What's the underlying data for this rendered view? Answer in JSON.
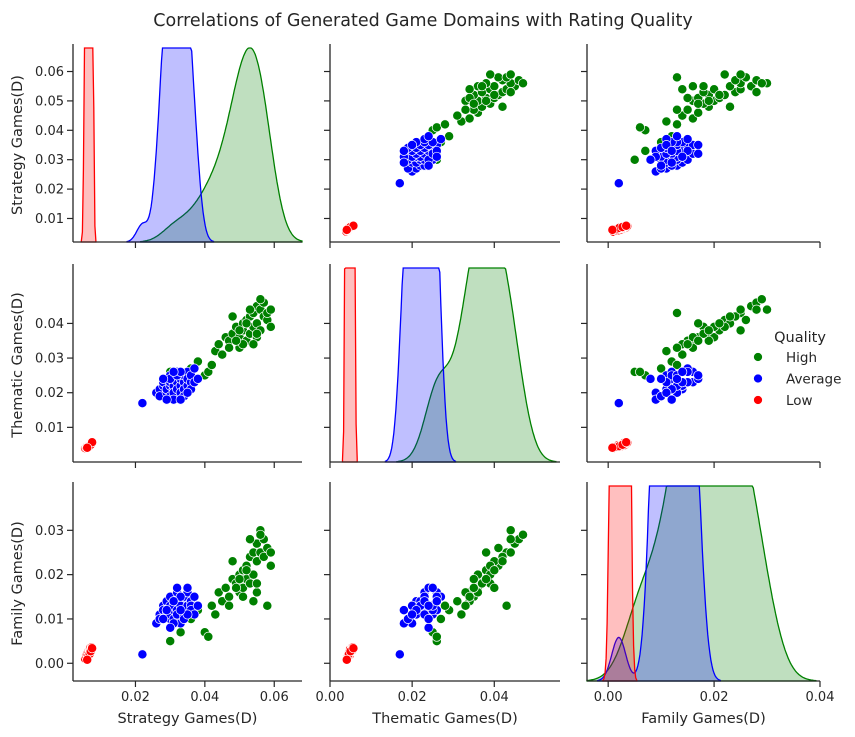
{
  "figure": {
    "title": "Correlations of Generated Game Domains with Rating Quality"
  },
  "legend": {
    "title": "Quality",
    "placement": "right",
    "entries": [
      {
        "label": "High",
        "color": "#008000"
      },
      {
        "label": "Average",
        "color": "#0000ff"
      },
      {
        "label": "Low",
        "color": "#ff0000"
      }
    ]
  },
  "chart_data": {
    "type": "scatter",
    "subtype": "pairplot",
    "variables": [
      "Strategy Games(D)",
      "Thematic Games(D)",
      "Family Games(D)"
    ],
    "axis_ranges": {
      "Strategy Games(D)": [
        0.002,
        0.068
      ],
      "Thematic Games(D)": [
        0.0,
        0.056
      ],
      "Family Games(D)": [
        -0.004,
        0.04
      ]
    },
    "ticks": {
      "Strategy Games(D)": [
        0.01,
        0.02,
        0.03,
        0.04,
        0.05,
        0.06
      ],
      "Thematic Games(D)": [
        0.01,
        0.02,
        0.03,
        0.04
      ],
      "Family Games(D)": [
        0.0,
        0.01,
        0.02,
        0.03
      ]
    },
    "bottom_ticks": {
      "Strategy Games(D)": [
        0.02,
        0.04,
        0.06
      ],
      "Thematic Games(D)": [
        0.0,
        0.02,
        0.04
      ],
      "Family Games(D)": [
        0.0,
        0.02,
        0.04
      ]
    },
    "tick_labels": {
      "Strategy Games(D)": [
        "0.01",
        "0.02",
        "0.03",
        "0.04",
        "0.05",
        "0.06"
      ],
      "Thematic Games(D)": [
        "0.01",
        "0.02",
        "0.03",
        "0.04"
      ],
      "Family Games(D)": [
        "0.00",
        "0.01",
        "0.02",
        "0.03"
      ]
    },
    "bottom_tick_labels": {
      "Strategy Games(D)": [
        "0.02",
        "0.04",
        "0.06"
      ],
      "Thematic Games(D)": [
        "0.00",
        "0.02",
        "0.04"
      ],
      "Family Games(D)": [
        "0.00",
        "0.02",
        "0.04"
      ]
    },
    "diag_ymax": [
      60,
      48,
      30
    ],
    "grid": false,
    "series": [
      {
        "name": "High",
        "color": "#008000",
        "points": [
          [
            0.03,
            0.026,
            0.005
          ],
          [
            0.033,
            0.025,
            0.007
          ],
          [
            0.036,
            0.027,
            0.01
          ],
          [
            0.038,
            0.029,
            0.012
          ],
          [
            0.04,
            0.025,
            0.007
          ],
          [
            0.041,
            0.026,
            0.006
          ],
          [
            0.042,
            0.028,
            0.013
          ],
          [
            0.043,
            0.032,
            0.011
          ],
          [
            0.044,
            0.034,
            0.016
          ],
          [
            0.045,
            0.031,
            0.014
          ],
          [
            0.046,
            0.036,
            0.017
          ],
          [
            0.047,
            0.035,
            0.015
          ],
          [
            0.048,
            0.037,
            0.019
          ],
          [
            0.049,
            0.039,
            0.018
          ],
          [
            0.05,
            0.036,
            0.02
          ],
          [
            0.05,
            0.033,
            0.016
          ],
          [
            0.051,
            0.038,
            0.021
          ],
          [
            0.051,
            0.04,
            0.017
          ],
          [
            0.052,
            0.041,
            0.022
          ],
          [
            0.052,
            0.035,
            0.019
          ],
          [
            0.053,
            0.037,
            0.018
          ],
          [
            0.053,
            0.042,
            0.024
          ],
          [
            0.054,
            0.039,
            0.02
          ],
          [
            0.054,
            0.043,
            0.025
          ],
          [
            0.055,
            0.04,
            0.023
          ],
          [
            0.055,
            0.036,
            0.016
          ],
          [
            0.055,
            0.045,
            0.027
          ],
          [
            0.056,
            0.044,
            0.03
          ],
          [
            0.056,
            0.038,
            0.025
          ],
          [
            0.057,
            0.042,
            0.024
          ],
          [
            0.057,
            0.046,
            0.028
          ],
          [
            0.058,
            0.041,
            0.026
          ],
          [
            0.058,
            0.043,
            0.013
          ],
          [
            0.059,
            0.039,
            0.022
          ],
          [
            0.059,
            0.044,
            0.025
          ],
          [
            0.054,
            0.034,
            0.014
          ],
          [
            0.053,
            0.044,
            0.028
          ],
          [
            0.052,
            0.04,
            0.021
          ],
          [
            0.056,
            0.047,
            0.029
          ],
          [
            0.055,
            0.037,
            0.018
          ],
          [
            0.051,
            0.034,
            0.015
          ],
          [
            0.05,
            0.038,
            0.019
          ],
          [
            0.049,
            0.035,
            0.017
          ],
          [
            0.048,
            0.042,
            0.023
          ],
          [
            0.047,
            0.033,
            0.013
          ]
        ]
      },
      {
        "name": "Average",
        "color": "#0000ff",
        "points": [
          [
            0.022,
            0.017,
            0.002
          ],
          [
            0.026,
            0.02,
            0.009
          ],
          [
            0.027,
            0.021,
            0.011
          ],
          [
            0.027,
            0.019,
            0.01
          ],
          [
            0.028,
            0.022,
            0.013
          ],
          [
            0.028,
            0.023,
            0.012
          ],
          [
            0.029,
            0.02,
            0.011
          ],
          [
            0.029,
            0.021,
            0.014
          ],
          [
            0.029,
            0.024,
            0.012
          ],
          [
            0.03,
            0.022,
            0.013
          ],
          [
            0.03,
            0.019,
            0.01
          ],
          [
            0.03,
            0.023,
            0.015
          ],
          [
            0.03,
            0.025,
            0.011
          ],
          [
            0.031,
            0.021,
            0.012
          ],
          [
            0.031,
            0.022,
            0.014
          ],
          [
            0.031,
            0.024,
            0.01
          ],
          [
            0.031,
            0.02,
            0.013
          ],
          [
            0.032,
            0.023,
            0.016
          ],
          [
            0.032,
            0.026,
            0.012
          ],
          [
            0.032,
            0.021,
            0.011
          ],
          [
            0.033,
            0.022,
            0.014
          ],
          [
            0.033,
            0.024,
            0.013
          ],
          [
            0.033,
            0.02,
            0.009
          ],
          [
            0.034,
            0.023,
            0.015
          ],
          [
            0.034,
            0.025,
            0.012
          ],
          [
            0.034,
            0.021,
            0.011
          ],
          [
            0.035,
            0.022,
            0.013
          ],
          [
            0.035,
            0.026,
            0.016
          ],
          [
            0.035,
            0.024,
            0.017
          ],
          [
            0.036,
            0.023,
            0.014
          ],
          [
            0.036,
            0.025,
            0.013
          ],
          [
            0.036,
            0.021,
            0.012
          ],
          [
            0.037,
            0.027,
            0.015
          ],
          [
            0.037,
            0.023,
            0.011
          ],
          [
            0.038,
            0.024,
            0.013
          ],
          [
            0.031,
            0.018,
            0.009
          ],
          [
            0.03,
            0.024,
            0.008
          ],
          [
            0.032,
            0.025,
            0.017
          ],
          [
            0.033,
            0.026,
            0.015
          ],
          [
            0.034,
            0.019,
            0.01
          ],
          [
            0.028,
            0.024,
            0.01
          ],
          [
            0.029,
            0.018,
            0.012
          ],
          [
            0.035,
            0.02,
            0.011
          ],
          [
            0.031,
            0.026,
            0.014
          ],
          [
            0.033,
            0.018,
            0.012
          ]
        ]
      },
      {
        "name": "Low",
        "color": "#ff0000",
        "points": [
          [
            0.0055,
            0.004,
            0.001
          ],
          [
            0.0058,
            0.0042,
            0.0015
          ],
          [
            0.006,
            0.0045,
            0.002
          ],
          [
            0.0062,
            0.0043,
            0.0012
          ],
          [
            0.0063,
            0.0046,
            0.0025
          ],
          [
            0.0065,
            0.0048,
            0.0018
          ],
          [
            0.0066,
            0.005,
            0.003
          ],
          [
            0.0067,
            0.0047,
            0.0022
          ],
          [
            0.0068,
            0.0052,
            0.0028
          ],
          [
            0.0069,
            0.0049,
            0.0032
          ],
          [
            0.007,
            0.0053,
            0.0035
          ],
          [
            0.0071,
            0.0051,
            0.0026
          ],
          [
            0.0072,
            0.0055,
            0.003
          ],
          [
            0.0073,
            0.0054,
            0.0033
          ],
          [
            0.0074,
            0.0056,
            0.0036
          ],
          [
            0.0064,
            0.0044,
            0.0016
          ],
          [
            0.0068,
            0.0046,
            0.0021
          ],
          [
            0.0071,
            0.005,
            0.0027
          ],
          [
            0.0075,
            0.0057,
            0.0034
          ],
          [
            0.0061,
            0.0041,
            0.0008
          ]
        ]
      }
    ]
  }
}
